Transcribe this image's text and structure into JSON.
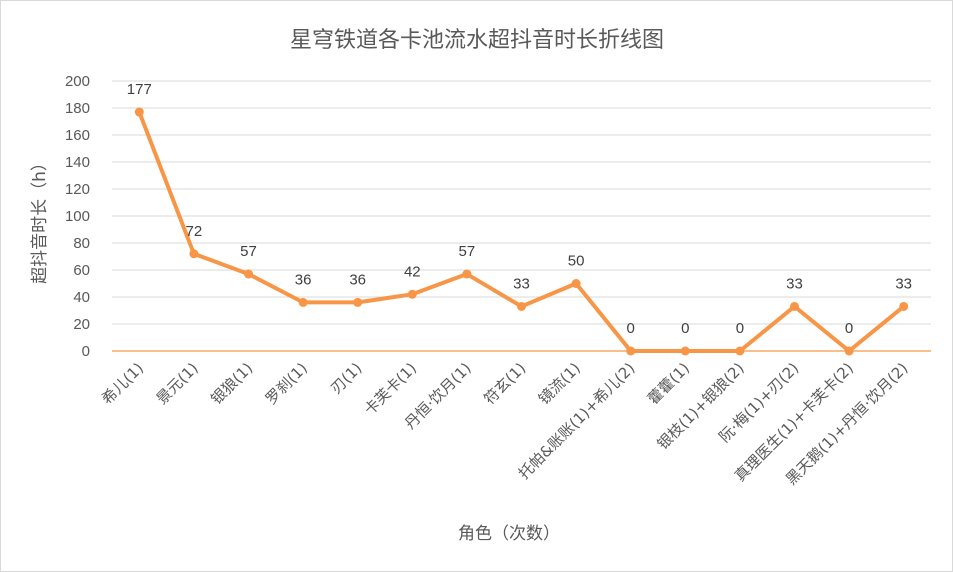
{
  "chart_data": {
    "type": "line",
    "title": "星穹铁道各卡池流水超抖音时长折线图",
    "xlabel": "角色（次数）",
    "ylabel": "超抖音时长（h）",
    "ylim": [
      0,
      200
    ],
    "ytick_step": 20,
    "yticks": [
      "0",
      "20",
      "40",
      "60",
      "80",
      "100",
      "120",
      "140",
      "160",
      "180",
      "200"
    ],
    "grid": true,
    "legend": "none",
    "categories": [
      "希儿(1)",
      "景元(1)",
      "银狼(1)",
      "罗刹(1)",
      "刃(1)",
      "卡芙卡(1)",
      "丹恒·饮月(1)",
      "符玄(1)",
      "镜流(1)",
      "托帕&账账(1)+希儿(2)",
      "藿藿(1)",
      "银枝(1)+银狼(2)",
      "阮·梅(1)+刃(2)",
      "真理医生(1)+卡芙卡(2)",
      "黑天鹅(1)+丹恒·饮月(2)"
    ],
    "series": [
      {
        "values": [
          177,
          72,
          57,
          36,
          36,
          42,
          57,
          33,
          50,
          0,
          0,
          0,
          33,
          0,
          33
        ],
        "data_labels": [
          "177",
          "72",
          "57",
          "36",
          "36",
          "42",
          "57",
          "33",
          "50",
          "0",
          "0",
          "0",
          "33",
          "0",
          "33"
        ],
        "color": "#F79646"
      }
    ],
    "colors": {
      "line": "#F79646",
      "grid": "#d9d9d9",
      "zero_line": "#F79646",
      "text": "#595959"
    }
  }
}
